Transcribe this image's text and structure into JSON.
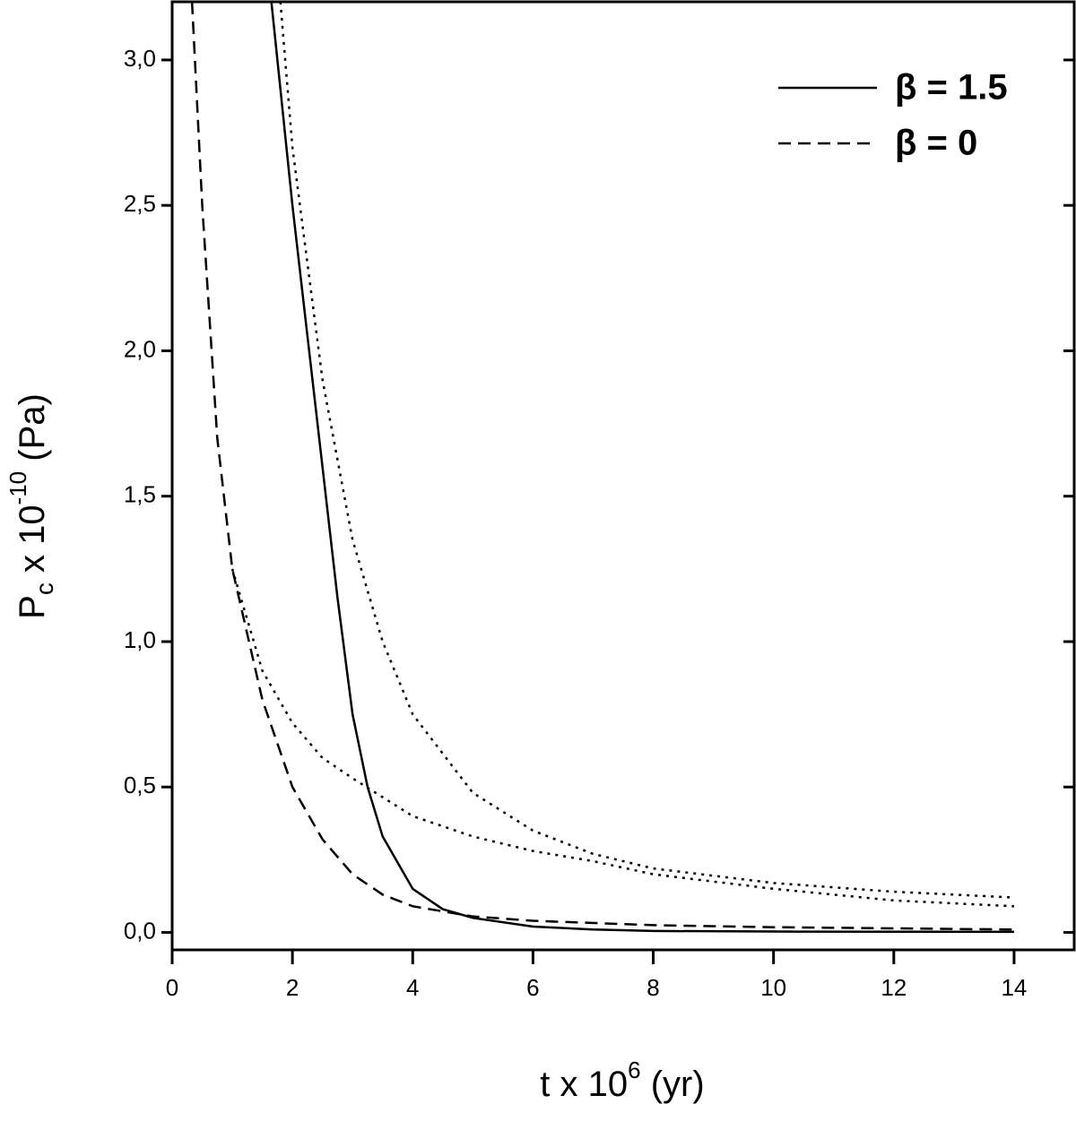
{
  "chart_data": {
    "type": "line",
    "xlabel": [
      "t x 10",
      "6",
      " (yr)"
    ],
    "ylabel": [
      "P",
      "c",
      " x 10",
      "-10",
      " (Pa)"
    ],
    "xlim": [
      0,
      15
    ],
    "ylim": [
      -0.06,
      3.2
    ],
    "xticks": [
      0,
      2,
      4,
      6,
      8,
      10,
      12,
      14
    ],
    "yticks": [
      {
        "value": 0,
        "label": "0,0"
      },
      {
        "value": 0.5,
        "label": "0,5"
      },
      {
        "value": 1,
        "label": "1,0"
      },
      {
        "value": 1.5,
        "label": "1,5"
      },
      {
        "value": 2,
        "label": "2,0"
      },
      {
        "value": 2.5,
        "label": "2,5"
      },
      {
        "value": 3,
        "label": "3,0"
      }
    ],
    "legend": "upper right",
    "series": [
      {
        "name": "β = 1.5",
        "color": "#000000",
        "dash": "solid",
        "x": [
          1.65,
          1.8,
          2,
          2.25,
          2.5,
          2.75,
          3,
          3.25,
          3.5,
          4,
          4.5,
          5,
          6,
          7,
          8,
          10,
          14
        ],
        "values": [
          3.2,
          2.9,
          2.5,
          2.05,
          1.6,
          1.15,
          0.75,
          0.5,
          0.33,
          0.15,
          0.08,
          0.05,
          0.02,
          0.01,
          0.005,
          0.003,
          0.002
        ]
      },
      {
        "name": "β = 0",
        "color": "#000000",
        "dash": "dashed",
        "x": [
          0.33,
          0.5,
          0.75,
          1,
          1.5,
          2,
          2.5,
          3,
          3.5,
          4,
          5,
          6,
          8,
          10,
          14
        ],
        "values": [
          3.2,
          2.5,
          1.7,
          1.25,
          0.8,
          0.5,
          0.32,
          0.2,
          0.13,
          0.09,
          0.055,
          0.04,
          0.025,
          0.018,
          0.01
        ]
      },
      {
        "color": "#000000",
        "dash": "dotted",
        "x": [
          1.8,
          2,
          2.5,
          3,
          3.5,
          4,
          5,
          6,
          7,
          8,
          10,
          12,
          14
        ],
        "values": [
          3.2,
          2.7,
          1.9,
          1.35,
          1.0,
          0.75,
          0.48,
          0.35,
          0.27,
          0.22,
          0.17,
          0.14,
          0.12
        ]
      },
      {
        "color": "#000000",
        "dash": "dotted",
        "x": [
          1,
          1.5,
          2,
          2.5,
          3,
          4,
          5,
          6,
          7,
          8,
          10,
          12,
          14
        ],
        "values": [
          1.25,
          0.9,
          0.72,
          0.6,
          0.53,
          0.4,
          0.33,
          0.28,
          0.245,
          0.2,
          0.15,
          0.11,
          0.09
        ]
      }
    ]
  }
}
